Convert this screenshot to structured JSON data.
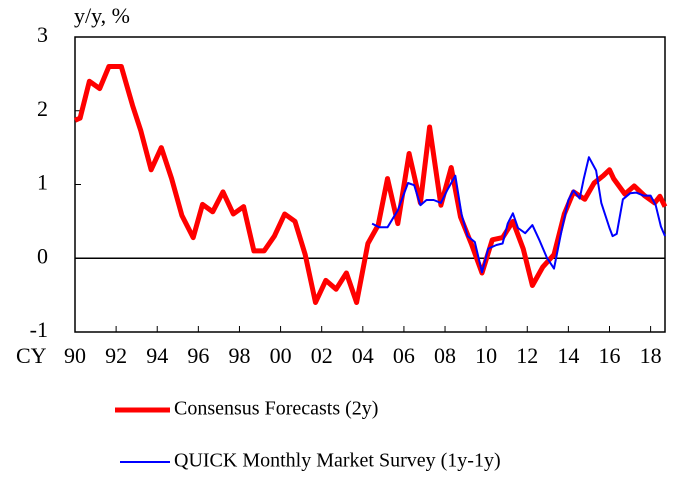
{
  "chart_data": {
    "type": "line",
    "y_label": "y/y, %",
    "x_label": "CY",
    "xlim": [
      1990,
      2018.7
    ],
    "ylim": [
      -1,
      3
    ],
    "yticks": [
      -1,
      0,
      1,
      2,
      3
    ],
    "xticks": [
      {
        "value": 1990,
        "label": "90"
      },
      {
        "value": 1992,
        "label": "92"
      },
      {
        "value": 1994,
        "label": "94"
      },
      {
        "value": 1996,
        "label": "96"
      },
      {
        "value": 1998,
        "label": "98"
      },
      {
        "value": 2000,
        "label": "00"
      },
      {
        "value": 2002,
        "label": "02"
      },
      {
        "value": 2004,
        "label": "04"
      },
      {
        "value": 2006,
        "label": "06"
      },
      {
        "value": 2008,
        "label": "08"
      },
      {
        "value": 2010,
        "label": "10"
      },
      {
        "value": 2012,
        "label": "12"
      },
      {
        "value": 2014,
        "label": "14"
      },
      {
        "value": 2016,
        "label": "16"
      },
      {
        "value": 2018,
        "label": "18"
      }
    ],
    "zero_line": true,
    "series": [
      {
        "name": "Consensus Forecasts (2y)",
        "color": "#ff0000",
        "width": 5,
        "x": [
          1990.0,
          1990.25,
          1990.7,
          1991.2,
          1991.65,
          1992.25,
          1992.8,
          1993.2,
          1993.7,
          1994.2,
          1994.7,
          1995.2,
          1995.75,
          1996.2,
          1996.7,
          1997.2,
          1997.7,
          1998.2,
          1998.7,
          1999.2,
          1999.7,
          2000.2,
          2000.7,
          2001.2,
          2001.7,
          2002.2,
          2002.7,
          2003.2,
          2003.7,
          2004.25,
          2004.75,
          2005.2,
          2005.7,
          2006.25,
          2006.8,
          2007.25,
          2007.8,
          2008.3,
          2008.75,
          2009.3,
          2009.8,
          2010.3,
          2010.8,
          2011.3,
          2011.8,
          2012.25,
          2012.75,
          2013.3,
          2013.8,
          2014.25,
          2014.8,
          2015.25,
          2015.7,
          2016.0,
          2016.2,
          2016.75,
          2017.2,
          2017.7,
          2018.2,
          2018.45,
          2018.7
        ],
        "values": [
          1.87,
          1.9,
          2.4,
          2.3,
          2.6,
          2.6,
          2.07,
          1.73,
          1.2,
          1.5,
          1.08,
          0.58,
          0.28,
          0.73,
          0.63,
          0.9,
          0.6,
          0.7,
          0.1,
          0.1,
          0.3,
          0.6,
          0.5,
          0.05,
          -0.6,
          -0.3,
          -0.42,
          -0.2,
          -0.6,
          0.2,
          0.45,
          1.08,
          0.47,
          1.42,
          0.75,
          1.78,
          0.72,
          1.23,
          0.56,
          0.18,
          -0.2,
          0.25,
          0.28,
          0.5,
          0.13,
          -0.37,
          -0.12,
          0.05,
          0.6,
          0.9,
          0.8,
          1.02,
          1.12,
          1.2,
          1.08,
          0.87,
          0.98,
          0.85,
          0.75,
          0.84,
          0.7
        ]
      },
      {
        "name": "QUICK Monthly Market Survey (1y-1y)",
        "color": "#0000ff",
        "width": 2,
        "x": [
          2004.45,
          2004.8,
          2005.2,
          2005.7,
          2006.2,
          2006.5,
          2006.8,
          2007.1,
          2007.45,
          2007.8,
          2008.1,
          2008.5,
          2008.8,
          2009.1,
          2009.45,
          2009.8,
          2010.1,
          2010.5,
          2010.8,
          2011.05,
          2011.3,
          2011.55,
          2011.9,
          2012.25,
          2012.6,
          2012.95,
          2013.3,
          2013.65,
          2014.0,
          2014.25,
          2014.55,
          2014.75,
          2015.0,
          2015.35,
          2015.6,
          2016.0,
          2016.15,
          2016.35,
          2016.65,
          2017.0,
          2017.3,
          2017.65,
          2018.0,
          2018.25,
          2018.5,
          2018.7
        ],
        "values": [
          0.47,
          0.42,
          0.42,
          0.65,
          1.02,
          0.99,
          0.72,
          0.79,
          0.79,
          0.75,
          0.92,
          1.12,
          0.6,
          0.3,
          0.22,
          -0.19,
          0.13,
          0.18,
          0.2,
          0.47,
          0.61,
          0.41,
          0.34,
          0.45,
          0.24,
          0.01,
          -0.14,
          0.35,
          0.79,
          0.92,
          0.81,
          1.08,
          1.37,
          1.19,
          0.75,
          0.41,
          0.3,
          0.33,
          0.8,
          0.88,
          0.89,
          0.85,
          0.85,
          0.72,
          0.43,
          0.3
        ]
      }
    ]
  }
}
